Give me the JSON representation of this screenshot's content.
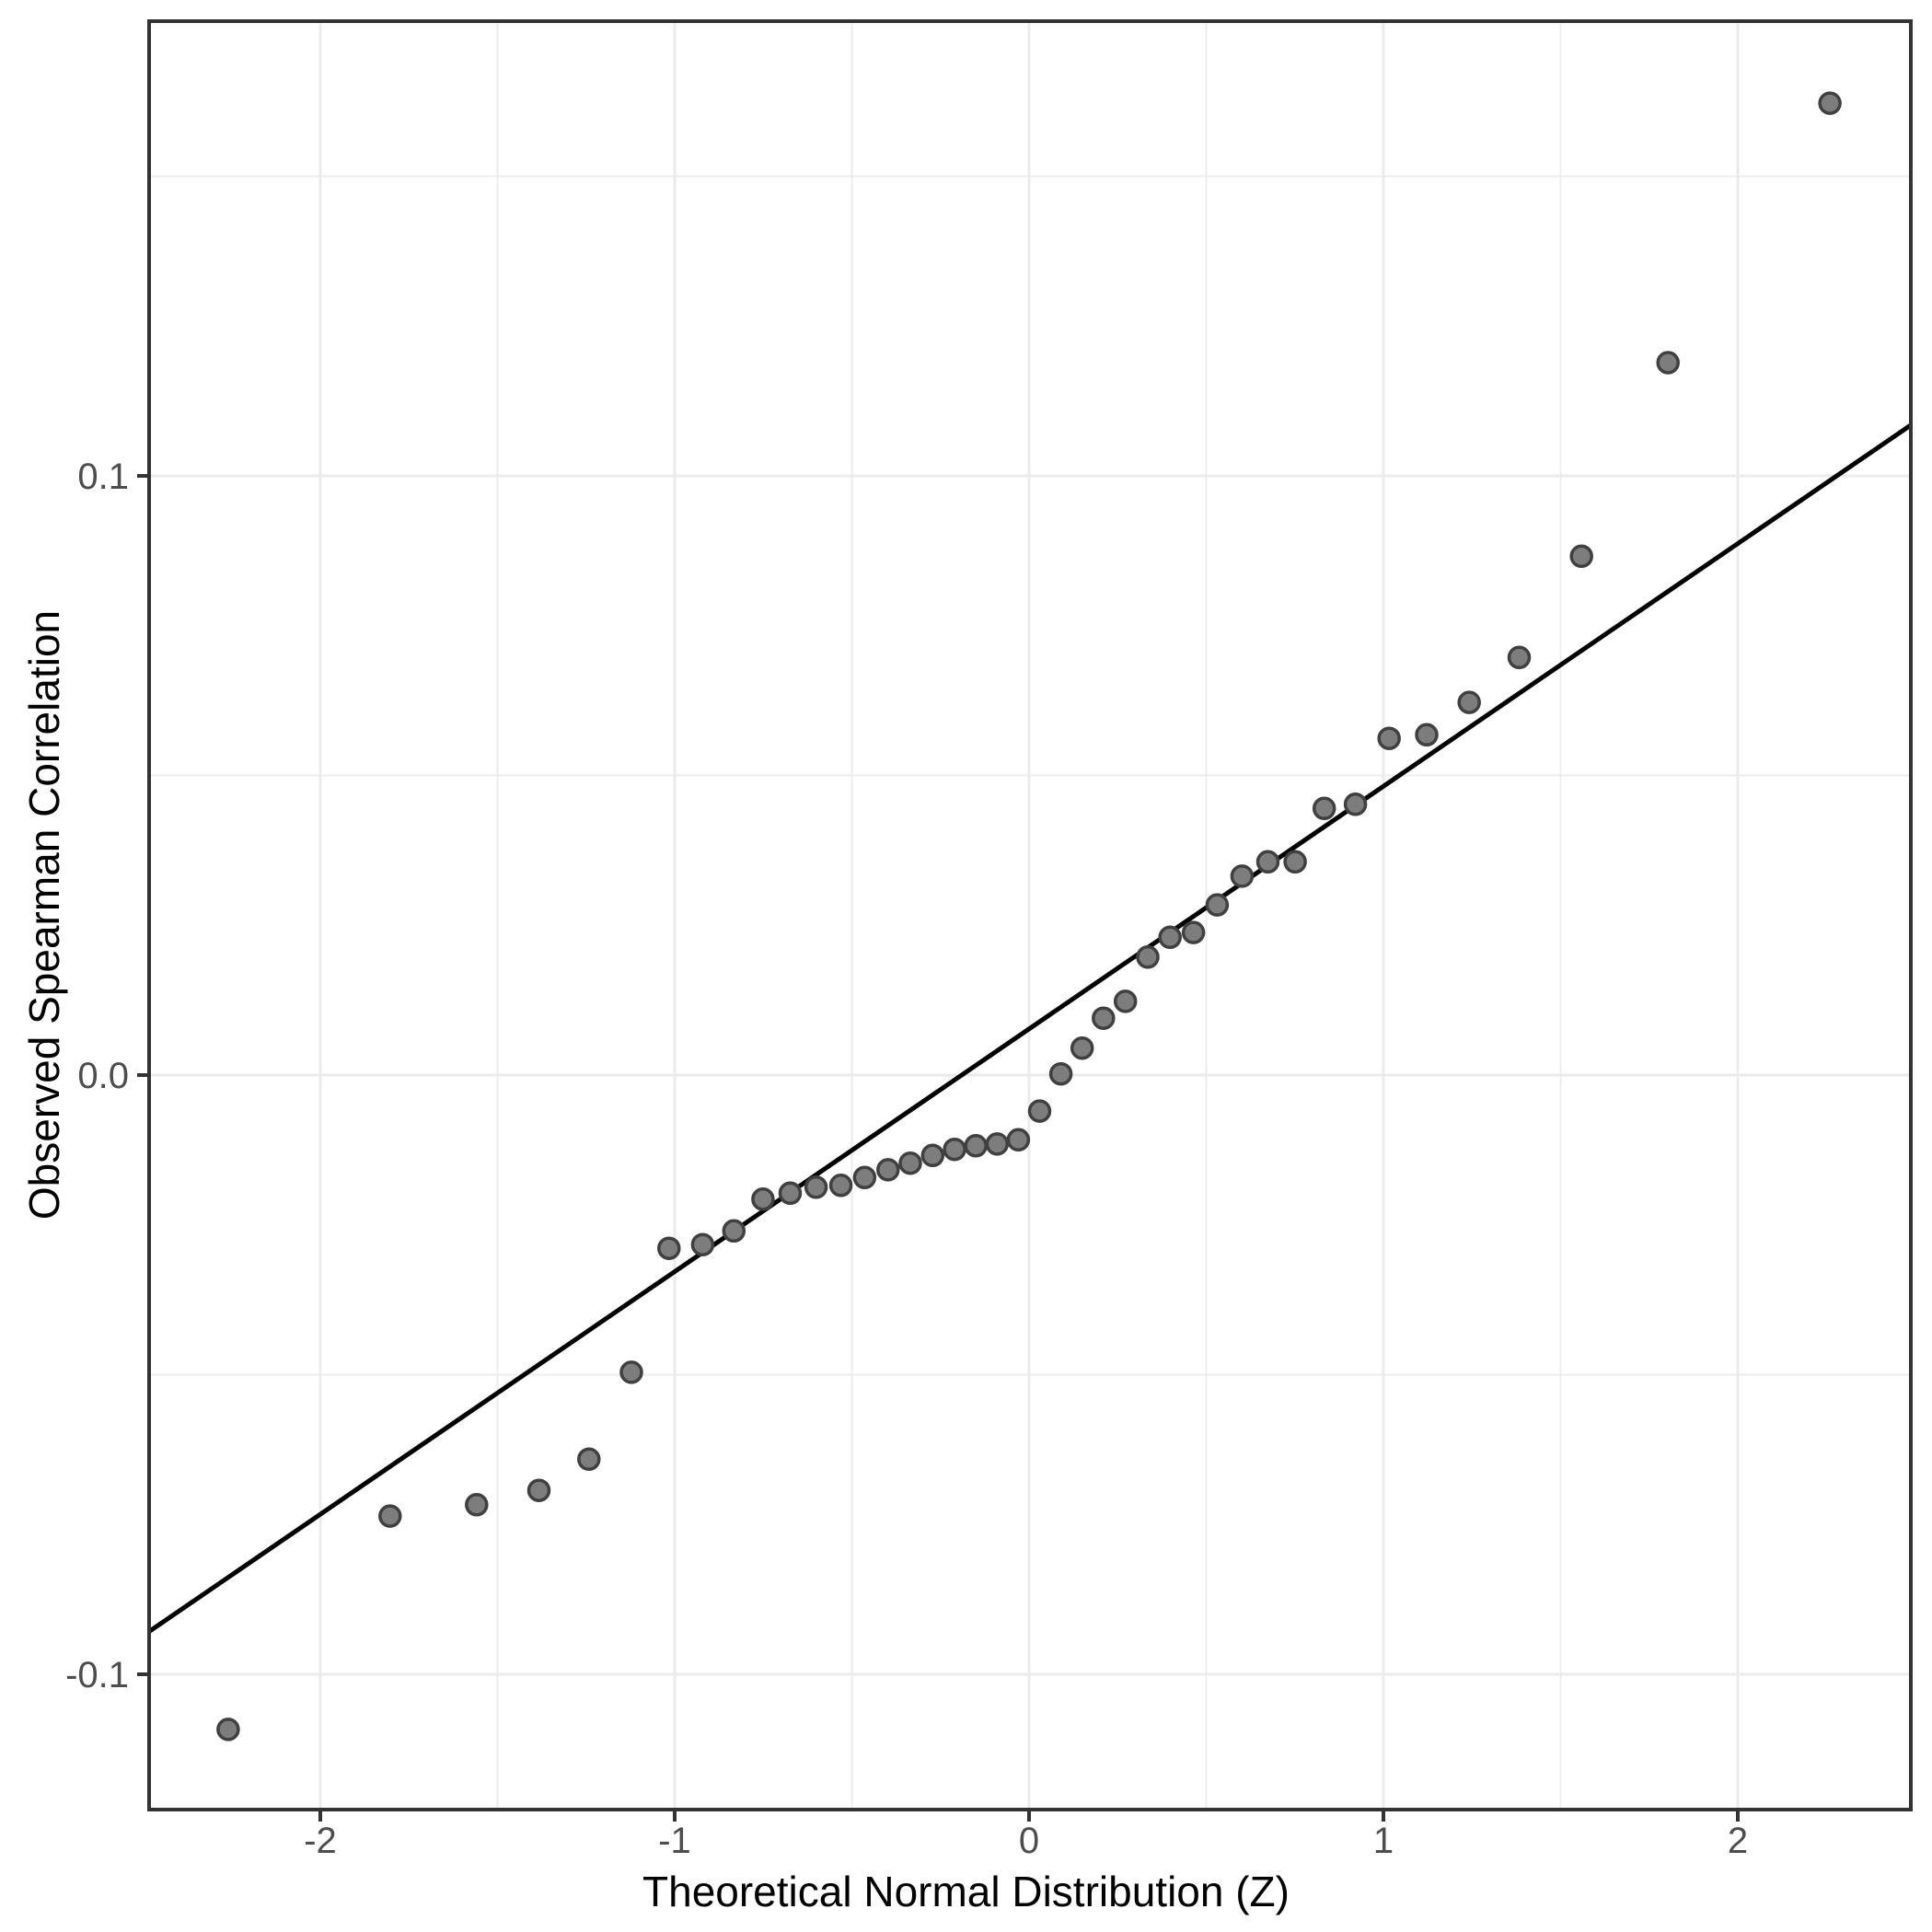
{
  "figure": {
    "background": "#ffffff"
  },
  "chart_data": {
    "type": "scatter",
    "title": "",
    "xlabel": "Theoretical Normal Distribution (Z)",
    "ylabel": "Observed Spearman Correlation",
    "xlim": [
      -2.4831,
      2.4883
    ],
    "ylim": [
      -0.12258,
      0.17589
    ],
    "grid": true,
    "legend_position": "none",
    "x_ticks": {
      "values": [
        -2,
        -1,
        0,
        1,
        2
      ],
      "labels": [
        "-2",
        "-1",
        "0",
        "1",
        "2"
      ]
    },
    "y_ticks": {
      "values": [
        0.1,
        0.0,
        -0.1
      ],
      "labels": [
        "0.1",
        "0.0",
        "-0.1"
      ]
    },
    "x_minor_gridlines": [
      -1.5,
      -0.5,
      0.5,
      1.5
    ],
    "y_minor_gridlines": [
      0.15,
      0.05,
      -0.05
    ],
    "reference_line": {
      "slope": 0.0405,
      "intercept": 0.0077
    },
    "series": [
      {
        "name": "qq-points",
        "points": [
          [
            -2.26,
            -0.1092
          ],
          [
            -1.803,
            -0.0736
          ],
          [
            -1.559,
            -0.0717
          ],
          [
            -1.383,
            -0.0693
          ],
          [
            -1.242,
            -0.0641
          ],
          [
            -1.122,
            -0.0496
          ],
          [
            -1.016,
            -0.0289
          ],
          [
            -0.921,
            -0.0283
          ],
          [
            -0.833,
            -0.026
          ],
          [
            -0.751,
            -0.0207
          ],
          [
            -0.674,
            -0.0197
          ],
          [
            -0.601,
            -0.0187
          ],
          [
            -0.531,
            -0.0184
          ],
          [
            -0.464,
            -0.0171
          ],
          [
            -0.398,
            -0.0158
          ],
          [
            -0.335,
            -0.0147
          ],
          [
            -0.272,
            -0.0134
          ],
          [
            -0.21,
            -0.0124
          ],
          [
            -0.15,
            -0.0118
          ],
          [
            -0.09,
            -0.0115
          ],
          [
            -0.03,
            -0.0108
          ],
          [
            0.03,
            -0.006
          ],
          [
            0.09,
            0.0002
          ],
          [
            0.15,
            0.0045
          ],
          [
            0.21,
            0.0095
          ],
          [
            0.272,
            0.0123
          ],
          [
            0.335,
            0.0197
          ],
          [
            0.398,
            0.023
          ],
          [
            0.464,
            0.0238
          ],
          [
            0.531,
            0.0284
          ],
          [
            0.601,
            0.0332
          ],
          [
            0.674,
            0.0356
          ],
          [
            0.751,
            0.0356
          ],
          [
            0.833,
            0.0445
          ],
          [
            0.921,
            0.0452
          ],
          [
            1.016,
            0.0562
          ],
          [
            1.122,
            0.0568
          ],
          [
            1.242,
            0.0622
          ],
          [
            1.383,
            0.0697
          ],
          [
            1.559,
            0.0866
          ],
          [
            1.803,
            0.1189
          ],
          [
            2.26,
            0.1622
          ]
        ]
      }
    ],
    "colors": {
      "point_fill": "#7d7d7d",
      "point_stroke": "#404040",
      "reference_line": "#000000",
      "grid_major": "#ebebeb",
      "grid_minor": "#ececec",
      "panel_border": "#333333",
      "tick_mark": "#333333",
      "tick_label": "#4d4d4d",
      "axis_title": "#000000"
    }
  }
}
